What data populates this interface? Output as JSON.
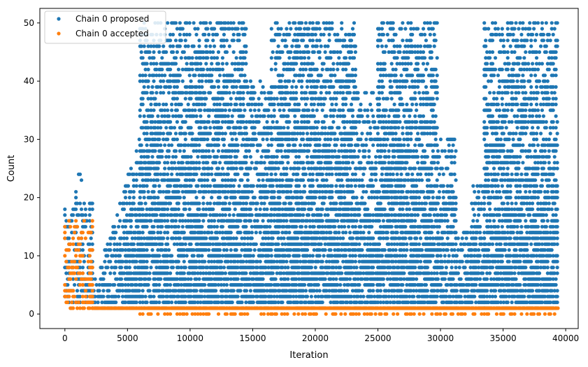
{
  "chart_data": {
    "type": "scatter",
    "title": "",
    "xlabel": "Iteration",
    "ylabel": "Count",
    "xlim": [
      -2000,
      41000
    ],
    "ylim": [
      -2.5,
      52.5
    ],
    "xticks": [
      0,
      5000,
      10000,
      15000,
      20000,
      25000,
      30000,
      35000,
      40000
    ],
    "xtick_labels": [
      "0",
      "5000",
      "10000",
      "15000",
      "20000",
      "25000",
      "30000",
      "35000",
      "40000"
    ],
    "yticks": [
      0,
      10,
      20,
      30,
      40,
      50
    ],
    "ytick_labels": [
      "0",
      "10",
      "20",
      "30",
      "40",
      "50"
    ],
    "grid": false,
    "legend_position": "top-left",
    "series": [
      {
        "name": "Chain 0 proposed",
        "color": "#1f77b4",
        "marker": "dot",
        "segments": [
          {
            "x_start": 0,
            "x_end": 2200,
            "y_min": 2,
            "y_max": 19,
            "peak": 24,
            "density": 0.55
          },
          {
            "x_start": 2200,
            "x_end": 6000,
            "y_min": 1,
            "y_max_start": 4,
            "y_max_end": 30,
            "density": 0.75
          },
          {
            "x_start": 6000,
            "x_end": 14500,
            "y_min": 1,
            "y_max": 50,
            "density": 0.75
          },
          {
            "x_start": 14500,
            "x_end": 16500,
            "y_min": 1,
            "y_max": 40,
            "density": 0.7
          },
          {
            "x_start": 16500,
            "x_end": 23300,
            "y_min": 1,
            "y_max": 50,
            "density": 0.75
          },
          {
            "x_start": 23300,
            "x_end": 25000,
            "y_min": 1,
            "y_max": 38,
            "density": 0.7
          },
          {
            "x_start": 25000,
            "x_end": 29800,
            "y_min": 1,
            "y_max": 50,
            "density": 0.75
          },
          {
            "x_start": 29800,
            "x_end": 31300,
            "y_min": 1,
            "y_max": 30,
            "density": 0.7
          },
          {
            "x_start": 31300,
            "x_end": 32500,
            "y_min": 1,
            "y_max": 14,
            "density": 0.75
          },
          {
            "x_start": 32500,
            "x_end": 33500,
            "y_min": 1,
            "y_max": 22,
            "density": 0.75
          },
          {
            "x_start": 33500,
            "x_end": 39400,
            "y_min": 1,
            "y_max": 50,
            "density": 0.75
          }
        ]
      },
      {
        "name": "Chain 0 accepted",
        "color": "#ff7f0e",
        "marker": "dot",
        "segments": [
          {
            "x_start": 0,
            "x_end": 2200,
            "y_min": 1,
            "y_max": 16,
            "density": 0.5
          },
          {
            "x_start": 2200,
            "x_end": 39400,
            "y_const": 1,
            "density": 1.0
          },
          {
            "x_start": 6000,
            "x_end": 39400,
            "y_const": 0,
            "density": 0.35
          }
        ]
      }
    ]
  }
}
